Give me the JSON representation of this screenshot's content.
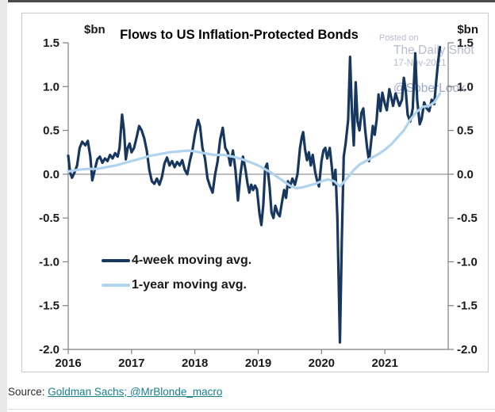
{
  "watermark": {
    "posted_on": "Posted on",
    "site": "The Daily Shot",
    "date": "17-Nov-2021",
    "handle": "@SoberLook"
  },
  "source": {
    "prefix": "Source:",
    "link": "Goldman Sachs; @MrBlonde_macro"
  },
  "chart_data": {
    "type": "line",
    "title": "Flows to US Inflation-Protected Bonds",
    "y_unit_left": "$bn",
    "y_unit_right": "$bn",
    "xlabel": "",
    "ylabel": "$bn",
    "xlim": [
      2016,
      2022
    ],
    "ylim": [
      -2.0,
      1.5
    ],
    "yticks": [
      "1.5",
      "1.0",
      "0.5",
      "0.0",
      "-0.5",
      "-1.0",
      "-1.5",
      "-2.0"
    ],
    "ytick_values": [
      1.5,
      1.0,
      0.5,
      0.0,
      -0.5,
      -1.0,
      -1.5,
      -2.0
    ],
    "xticks": [
      "2016",
      "2017",
      "2018",
      "2019",
      "2020",
      "2021"
    ],
    "xtick_values": [
      2016,
      2017,
      2018,
      2019,
      2020,
      2021
    ],
    "grid": "zero-line-only",
    "legend_position": "inside-lower-left",
    "colors": {
      "four_week": "#17375e",
      "one_year": "#b0d3ee",
      "zero_line": "#a6a6a6",
      "axis": "#808080",
      "tick_text": "#1a1a1a",
      "watermark": "#b7bcd1",
      "watermark_handle": "#9fa9cb",
      "source_link": "#17808f",
      "panel_border": "#c9c9c9"
    },
    "series": [
      {
        "name": "4-week moving avg.",
        "color": "#17375e",
        "stroke_width": 3.2,
        "points": [
          [
            2016.0,
            0.21
          ],
          [
            2016.03,
            0.02
          ],
          [
            2016.06,
            -0.04
          ],
          [
            2016.1,
            0.02
          ],
          [
            2016.14,
            0.1
          ],
          [
            2016.18,
            0.3
          ],
          [
            2016.22,
            0.37
          ],
          [
            2016.27,
            0.33
          ],
          [
            2016.31,
            0.38
          ],
          [
            2016.35,
            0.2
          ],
          [
            2016.38,
            -0.07
          ],
          [
            2016.42,
            0.05
          ],
          [
            2016.46,
            0.17
          ],
          [
            2016.5,
            0.2
          ],
          [
            2016.54,
            0.13
          ],
          [
            2016.58,
            0.18
          ],
          [
            2016.62,
            0.15
          ],
          [
            2016.66,
            0.22
          ],
          [
            2016.7,
            0.18
          ],
          [
            2016.74,
            0.24
          ],
          [
            2016.78,
            0.2
          ],
          [
            2016.81,
            0.3
          ],
          [
            2016.85,
            0.68
          ],
          [
            2016.88,
            0.5
          ],
          [
            2016.91,
            0.17
          ],
          [
            2016.94,
            0.3
          ],
          [
            2016.97,
            0.35
          ],
          [
            2017.0,
            0.25
          ],
          [
            2017.04,
            0.3
          ],
          [
            2017.08,
            0.42
          ],
          [
            2017.12,
            0.55
          ],
          [
            2017.16,
            0.5
          ],
          [
            2017.2,
            0.41
          ],
          [
            2017.24,
            0.27
          ],
          [
            2017.28,
            0.05
          ],
          [
            2017.32,
            -0.08
          ],
          [
            2017.36,
            -0.11
          ],
          [
            2017.4,
            -0.05
          ],
          [
            2017.44,
            -0.12
          ],
          [
            2017.48,
            -0.03
          ],
          [
            2017.52,
            0.12
          ],
          [
            2017.56,
            0.19
          ],
          [
            2017.6,
            0.1
          ],
          [
            2017.64,
            0.15
          ],
          [
            2017.68,
            0.08
          ],
          [
            2017.72,
            0.14
          ],
          [
            2017.76,
            0.1
          ],
          [
            2017.8,
            0.16
          ],
          [
            2017.84,
            0.05
          ],
          [
            2017.88,
            0.0
          ],
          [
            2017.92,
            0.15
          ],
          [
            2017.96,
            0.27
          ],
          [
            2018.0,
            0.45
          ],
          [
            2018.05,
            0.62
          ],
          [
            2018.08,
            0.55
          ],
          [
            2018.12,
            0.3
          ],
          [
            2018.16,
            0.18
          ],
          [
            2018.2,
            -0.05
          ],
          [
            2018.24,
            -0.14
          ],
          [
            2018.28,
            -0.21
          ],
          [
            2018.32,
            0.0
          ],
          [
            2018.36,
            0.15
          ],
          [
            2018.4,
            0.4
          ],
          [
            2018.44,
            0.53
          ],
          [
            2018.48,
            0.3
          ],
          [
            2018.52,
            0.25
          ],
          [
            2018.56,
            0.1
          ],
          [
            2018.6,
            0.27
          ],
          [
            2018.64,
            0.05
          ],
          [
            2018.68,
            -0.3
          ],
          [
            2018.72,
            0.0
          ],
          [
            2018.76,
            0.2
          ],
          [
            2018.8,
            0.05
          ],
          [
            2018.83,
            -0.1
          ],
          [
            2018.86,
            -0.21
          ],
          [
            2018.89,
            -0.12
          ],
          [
            2018.92,
            -0.18
          ],
          [
            2018.95,
            -0.13
          ],
          [
            2018.98,
            -0.17
          ],
          [
            2019.02,
            -0.45
          ],
          [
            2019.05,
            -0.58
          ],
          [
            2019.08,
            -0.35
          ],
          [
            2019.11,
            0.07
          ],
          [
            2019.14,
            0.12
          ],
          [
            2019.18,
            -0.15
          ],
          [
            2019.21,
            -0.44
          ],
          [
            2019.24,
            -0.5
          ],
          [
            2019.27,
            -0.36
          ],
          [
            2019.31,
            -0.45
          ],
          [
            2019.34,
            -0.48
          ],
          [
            2019.38,
            -0.3
          ],
          [
            2019.41,
            -0.18
          ],
          [
            2019.44,
            -0.27
          ],
          [
            2019.47,
            -0.08
          ],
          [
            2019.5,
            -0.15
          ],
          [
            2019.54,
            -0.05
          ],
          [
            2019.58,
            -0.12
          ],
          [
            2019.62,
            0.0
          ],
          [
            2019.66,
            0.3
          ],
          [
            2019.69,
            0.43
          ],
          [
            2019.71,
            0.48
          ],
          [
            2019.74,
            0.28
          ],
          [
            2019.77,
            0.16
          ],
          [
            2019.8,
            0.25
          ],
          [
            2019.83,
            0.1
          ],
          [
            2019.86,
            0.22
          ],
          [
            2019.9,
            0.02
          ],
          [
            2019.93,
            -0.07
          ],
          [
            2019.96,
            -0.14
          ],
          [
            2020.0,
            0.15
          ],
          [
            2020.03,
            0.27
          ],
          [
            2020.06,
            0.3
          ],
          [
            2020.09,
            0.18
          ],
          [
            2020.13,
            0.3
          ],
          [
            2020.16,
            0.1
          ],
          [
            2020.19,
            -0.12
          ],
          [
            2020.22,
            0.05
          ],
          [
            2020.25,
            -0.5
          ],
          [
            2020.29,
            -1.92
          ],
          [
            2020.32,
            -0.75
          ],
          [
            2020.35,
            0.2
          ],
          [
            2020.38,
            0.35
          ],
          [
            2020.42,
            0.62
          ],
          [
            2020.45,
            1.34
          ],
          [
            2020.48,
            0.7
          ],
          [
            2020.51,
            0.33
          ],
          [
            2020.54,
            1.05
          ],
          [
            2020.57,
            0.6
          ],
          [
            2020.6,
            0.5
          ],
          [
            2020.63,
            0.7
          ],
          [
            2020.66,
            0.75
          ],
          [
            2020.69,
            0.5
          ],
          [
            2020.72,
            0.3
          ],
          [
            2020.75,
            0.15
          ],
          [
            2020.78,
            0.35
          ],
          [
            2020.81,
            0.55
          ],
          [
            2020.84,
            0.45
          ],
          [
            2020.87,
            0.62
          ],
          [
            2020.9,
            0.91
          ],
          [
            2020.93,
            0.72
          ],
          [
            2020.96,
            0.93
          ],
          [
            2021.0,
            0.8
          ],
          [
            2021.03,
            0.73
          ],
          [
            2021.07,
            0.97
          ],
          [
            2021.1,
            0.88
          ],
          [
            2021.13,
            0.78
          ],
          [
            2021.17,
            0.92
          ],
          [
            2021.2,
            0.85
          ],
          [
            2021.23,
            0.78
          ],
          [
            2021.27,
            0.85
          ],
          [
            2021.3,
            1.1
          ],
          [
            2021.33,
            0.95
          ],
          [
            2021.36,
            0.68
          ],
          [
            2021.4,
            0.6
          ],
          [
            2021.44,
            0.75
          ],
          [
            2021.48,
            1.38
          ],
          [
            2021.51,
            0.85
          ],
          [
            2021.55,
            0.57
          ],
          [
            2021.58,
            0.63
          ],
          [
            2021.62,
            0.82
          ],
          [
            2021.66,
            0.75
          ],
          [
            2021.7,
            0.72
          ],
          [
            2021.74,
            0.85
          ],
          [
            2021.78,
            0.8
          ],
          [
            2021.81,
            1.05
          ],
          [
            2021.84,
            1.28
          ],
          [
            2021.87,
            1.45
          ]
        ]
      },
      {
        "name": "1-year moving avg.",
        "color": "#b0d3ee",
        "stroke_width": 3.2,
        "points": [
          [
            2016.0,
            0.03
          ],
          [
            2016.15,
            0.05
          ],
          [
            2016.3,
            0.06
          ],
          [
            2016.45,
            0.06
          ],
          [
            2016.6,
            0.08
          ],
          [
            2016.75,
            0.1
          ],
          [
            2016.9,
            0.13
          ],
          [
            2017.0,
            0.15
          ],
          [
            2017.15,
            0.18
          ],
          [
            2017.3,
            0.21
          ],
          [
            2017.45,
            0.23
          ],
          [
            2017.6,
            0.25
          ],
          [
            2017.75,
            0.26
          ],
          [
            2017.9,
            0.27
          ],
          [
            2018.0,
            0.26
          ],
          [
            2018.15,
            0.24
          ],
          [
            2018.3,
            0.22
          ],
          [
            2018.45,
            0.22
          ],
          [
            2018.6,
            0.2
          ],
          [
            2018.75,
            0.17
          ],
          [
            2018.9,
            0.13
          ],
          [
            2019.0,
            0.1
          ],
          [
            2019.1,
            0.06
          ],
          [
            2019.2,
            0.02
          ],
          [
            2019.3,
            -0.03
          ],
          [
            2019.4,
            -0.08
          ],
          [
            2019.5,
            -0.13
          ],
          [
            2019.6,
            -0.16
          ],
          [
            2019.7,
            -0.15
          ],
          [
            2019.8,
            -0.13
          ],
          [
            2019.9,
            -0.11
          ],
          [
            2020.0,
            -0.08
          ],
          [
            2020.1,
            -0.06
          ],
          [
            2020.2,
            -0.08
          ],
          [
            2020.29,
            -0.14
          ],
          [
            2020.4,
            -0.05
          ],
          [
            2020.5,
            0.04
          ],
          [
            2020.6,
            0.11
          ],
          [
            2020.7,
            0.15
          ],
          [
            2020.8,
            0.19
          ],
          [
            2020.9,
            0.23
          ],
          [
            2021.0,
            0.28
          ],
          [
            2021.1,
            0.34
          ],
          [
            2021.2,
            0.42
          ],
          [
            2021.3,
            0.5
          ],
          [
            2021.4,
            0.62
          ],
          [
            2021.5,
            0.71
          ],
          [
            2021.6,
            0.77
          ],
          [
            2021.7,
            0.78
          ],
          [
            2021.78,
            0.82
          ],
          [
            2021.87,
            0.92
          ]
        ]
      }
    ]
  }
}
